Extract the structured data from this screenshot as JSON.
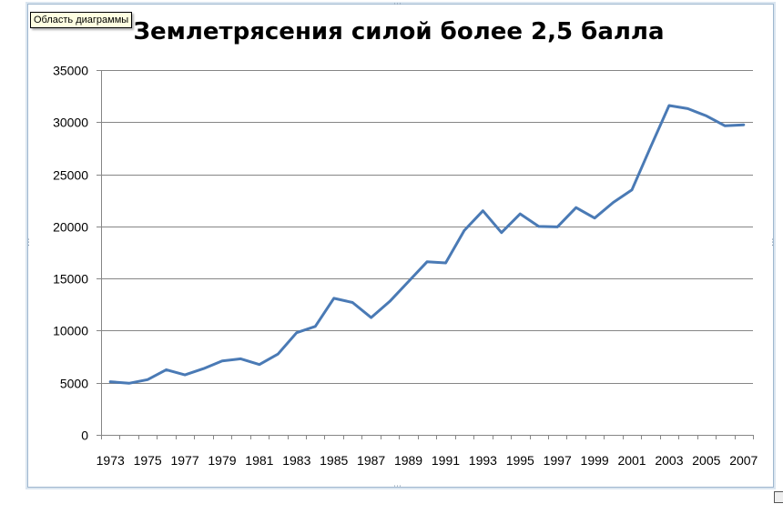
{
  "tooltip": {
    "text": "Область диаграммы"
  },
  "chart_data": {
    "type": "line",
    "title": "Землетрясения силой более 2,5 балла",
    "xlabel": "",
    "ylabel": "",
    "ylim": [
      0,
      35000
    ],
    "yticks": [
      0,
      5000,
      10000,
      15000,
      20000,
      25000,
      30000,
      35000
    ],
    "xtick_labels": [
      "1973",
      "1975",
      "1977",
      "1979",
      "1981",
      "1983",
      "1985",
      "1987",
      "1989",
      "1991",
      "1993",
      "1995",
      "1997",
      "1999",
      "2001",
      "2003",
      "2005",
      "2007"
    ],
    "grid": "horizontal",
    "legend": "none",
    "line_color": "#4a7ab5",
    "x": [
      1973,
      1974,
      1975,
      1976,
      1977,
      1978,
      1979,
      1980,
      1981,
      1982,
      1983,
      1984,
      1985,
      1986,
      1987,
      1988,
      1989,
      1990,
      1991,
      1992,
      1993,
      1994,
      1995,
      1996,
      1997,
      1998,
      1999,
      2000,
      2001,
      2002,
      2003,
      2004,
      2005,
      2006,
      2007
    ],
    "values": [
      5100,
      4950,
      5300,
      6250,
      5750,
      6350,
      7100,
      7300,
      6750,
      7750,
      9800,
      10400,
      13100,
      12700,
      11250,
      12800,
      14700,
      16600,
      16500,
      19600,
      21500,
      19400,
      21200,
      20000,
      19950,
      21800,
      20800,
      22300,
      23500,
      27600,
      31600,
      31300,
      30600,
      29650,
      29750
    ]
  }
}
